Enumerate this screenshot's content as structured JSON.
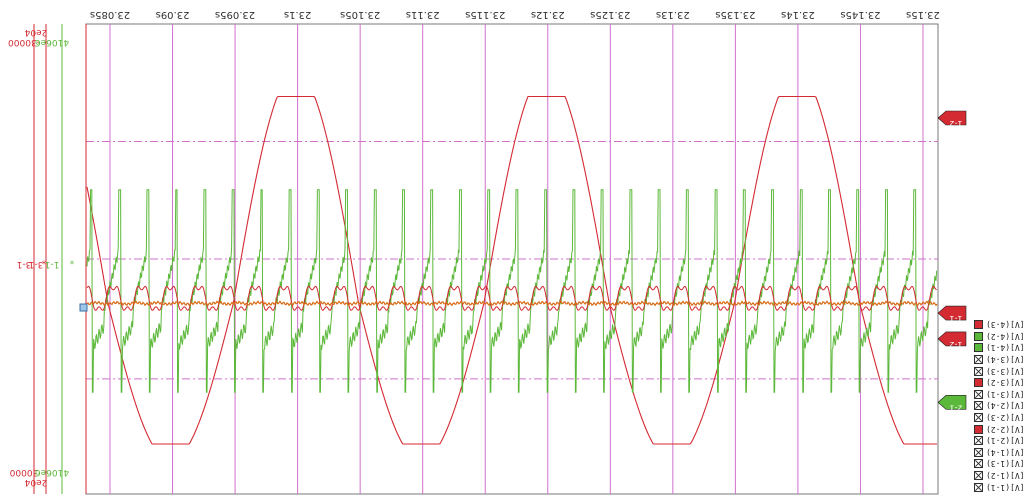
{
  "window": {
    "orientation": "rotated-180"
  },
  "colors": {
    "red": "#d42a32",
    "green": "#5cb83a",
    "orange": "#d86a14",
    "magenta_grid": "#d070cc",
    "background": "#ffffff"
  },
  "axes": {
    "left_red": {
      "color": "#d42a32",
      "top_label": "-30000",
      "bottom_label": "30000",
      "id_label": "3-1",
      "marker": "*"
    },
    "left_red2": {
      "color": "#d42a32",
      "top_label": "2e04",
      "bottom_label": "2e04",
      "id_label": "3-1"
    },
    "left_green": {
      "color": "#5cb83a",
      "top_label": "4106e6",
      "bottom_label": "4106e6",
      "id_label": "1-1",
      "marker": "*"
    }
  },
  "right_tags": [
    {
      "label": "1-2",
      "color": "#d42a32",
      "level": 0.8
    },
    {
      "label": "1-1",
      "color": "#d42a32",
      "level": 0.385
    },
    {
      "label": "1-2",
      "color": "#d42a32",
      "level": 0.33
    },
    {
      "label": "2-1",
      "color": "#5cb83a",
      "level": 0.195
    }
  ],
  "legend_items": [
    {
      "label": "[V](1-1)",
      "color": "#d42a32",
      "checked": true
    },
    {
      "label": "[V](1-2)",
      "color": "#5cb83a",
      "checked": true
    },
    {
      "label": "[V](1-3)",
      "color": "#5cb83a",
      "checked": true
    },
    {
      "label": "[V](1-4)",
      "color": "",
      "checked": false
    },
    {
      "label": "[V](2-1)",
      "color": "",
      "checked": false
    },
    {
      "label": "[V](2-2)",
      "color": "#d42a32",
      "checked": true
    },
    {
      "label": "[V](2-3)",
      "color": "",
      "checked": false
    },
    {
      "label": "[V](2-4)",
      "color": "",
      "checked": false
    },
    {
      "label": "[V](3-1)",
      "color": "",
      "checked": false
    },
    {
      "label": "[V](3-2)",
      "color": "#d42a32",
      "checked": true
    },
    {
      "label": "[V](3-3)",
      "color": "",
      "checked": false
    },
    {
      "label": "[V](3-4)",
      "color": "",
      "checked": false
    },
    {
      "label": "[V](4-1)",
      "color": "",
      "checked": false
    },
    {
      "label": "[V](4-2)",
      "color": "",
      "checked": false
    },
    {
      "label": "[V](4-3)",
      "color": "",
      "checked": false
    }
  ],
  "chart_data": {
    "type": "line",
    "title": "",
    "xlabel": "",
    "ylabel": "",
    "orientation": "rotated-180",
    "grid": true,
    "x_ticks": [
      "23.085s",
      "23.09s",
      "23.095s",
      "23.1s",
      "23.105s",
      "23.11s",
      "23.115s",
      "23.12s",
      "23.125s",
      "23.13s",
      "23.135s",
      "23.14s",
      "23.145s",
      "23.15s"
    ],
    "xlim": [
      23.08,
      23.15
    ],
    "ylim": [
      -30000,
      30000
    ],
    "series": [
      {
        "name": "",
        "color": "#d42a32",
        "shape": "sinusoid with clipped peaks",
        "periods": 3.4,
        "amplitude_fraction": 0.44,
        "offset_fraction": 0.0
      },
      {
        "name": "",
        "color": "#d42a32",
        "shape": "small ripple",
        "periods": 30,
        "amplitude_fraction": 0.03,
        "offset_fraction": 0.0
      },
      {
        "name": "",
        "color": "#5cb83a",
        "shape": "switching pulses",
        "periods": 30,
        "amplitude_fraction": 0.26,
        "offset_fraction": -0.05
      },
      {
        "name": "",
        "color": "#d86a14",
        "shape": "flat noisy",
        "periods": 0,
        "amplitude_fraction": 0.003,
        "offset_fraction": 0.0
      }
    ]
  }
}
